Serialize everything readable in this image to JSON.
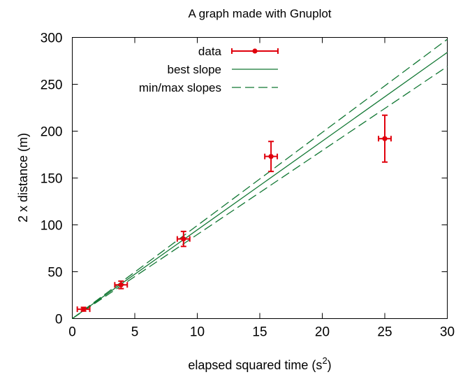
{
  "chart_data": {
    "type": "scatter",
    "title": "A graph made with Gnuplot",
    "xlabel": "elapsed squared time (s",
    "xlabel_superscript": "2",
    "xlabel_suffix": ")",
    "ylabel": "2 x distance (m)",
    "xlim": [
      0,
      30
    ],
    "ylim": [
      0,
      300
    ],
    "xticks": [
      "0",
      "5",
      "10",
      "15",
      "20",
      "25",
      "30"
    ],
    "yticks": [
      "0",
      "50",
      "100",
      "150",
      "200",
      "250",
      "300"
    ],
    "grid": false,
    "legend_position": "top-left",
    "series": [
      {
        "name": "data",
        "kind": "points-with-errorbars",
        "color": "#e0000c",
        "points": [
          {
            "x": 0.9,
            "y": 10,
            "xerr": 0.5,
            "yerr": 2
          },
          {
            "x": 3.9,
            "y": 36,
            "xerr": 0.5,
            "yerr": 4
          },
          {
            "x": 8.9,
            "y": 85,
            "xerr": 0.5,
            "yerr": 8
          },
          {
            "x": 15.9,
            "y": 173,
            "xerr": 0.5,
            "yerr": 16
          },
          {
            "x": 25.0,
            "y": 192,
            "xerr": 0.5,
            "yerr": 25
          }
        ]
      },
      {
        "name": "best slope",
        "kind": "line",
        "color": "#117733",
        "dash": "solid",
        "lines": [
          {
            "x": [
              0,
              30
            ],
            "y": [
              0,
              284
            ]
          }
        ]
      },
      {
        "name": "min/max slopes",
        "kind": "line",
        "color": "#117733",
        "dash": "dashed",
        "lines": [
          {
            "x": [
              0,
              30
            ],
            "y": [
              0,
              298
            ]
          },
          {
            "x": [
              0,
              30
            ],
            "y": [
              0,
              269
            ]
          }
        ]
      }
    ]
  }
}
